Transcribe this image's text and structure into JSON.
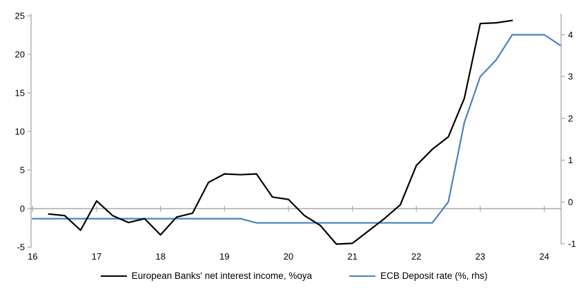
{
  "chart_data": {
    "type": "line",
    "title": "",
    "xlabel": "",
    "ylabel_left": "",
    "ylabel_right": "",
    "grid": false,
    "legend_position": "bottom",
    "x_axis": {
      "tick_labels": [
        "16",
        "17",
        "18",
        "19",
        "20",
        "21",
        "22",
        "23",
        "24"
      ],
      "tick_values": [
        16,
        17,
        18,
        19,
        20,
        21,
        22,
        23,
        24
      ],
      "range": [
        16,
        24.28
      ]
    },
    "left_axis": {
      "ticks": [
        -5,
        0,
        5,
        10,
        15,
        20,
        25
      ],
      "range": [
        -5,
        25
      ]
    },
    "right_axis": {
      "ticks": [
        -1,
        0,
        1,
        2,
        3,
        4
      ],
      "range": [
        -1,
        4.5
      ]
    },
    "series": [
      {
        "name": "European Banks' net interest income, %oya",
        "axis": "left",
        "color": "#000000",
        "x": [
          16.25,
          16.5,
          16.75,
          17.0,
          17.25,
          17.5,
          17.75,
          18.0,
          18.25,
          18.5,
          18.75,
          19.0,
          19.25,
          19.5,
          19.75,
          20.0,
          20.25,
          20.5,
          20.75,
          21.0,
          21.25,
          21.5,
          21.75,
          22.0,
          22.25,
          22.5,
          22.75,
          23.0,
          23.25,
          23.5
        ],
        "values": [
          -0.7,
          -0.9,
          -2.8,
          1.0,
          -0.9,
          -1.8,
          -1.3,
          -3.4,
          -1.1,
          -0.6,
          3.4,
          4.5,
          4.4,
          4.5,
          1.5,
          1.2,
          -0.9,
          -2.2,
          -4.6,
          -4.5,
          -2.9,
          -1.3,
          0.5,
          5.6,
          7.7,
          9.3,
          14.3,
          24.0,
          24.1,
          24.4
        ]
      },
      {
        "name": "ECB Deposit rate (%, rhs)",
        "axis": "right",
        "color": "#4a80c0",
        "x": [
          16.0,
          16.25,
          16.5,
          16.75,
          17.0,
          17.25,
          17.5,
          17.75,
          18.0,
          18.25,
          18.5,
          18.75,
          19.0,
          19.25,
          19.5,
          19.75,
          20.0,
          20.25,
          20.5,
          20.75,
          21.0,
          21.25,
          21.5,
          21.75,
          22.0,
          22.25,
          22.5,
          22.75,
          23.0,
          23.25,
          23.5,
          23.75,
          24.0,
          24.25
        ],
        "values": [
          -0.4,
          -0.4,
          -0.4,
          -0.4,
          -0.4,
          -0.4,
          -0.4,
          -0.4,
          -0.4,
          -0.4,
          -0.4,
          -0.4,
          -0.4,
          -0.4,
          -0.5,
          -0.5,
          -0.5,
          -0.5,
          -0.5,
          -0.5,
          -0.5,
          -0.5,
          -0.5,
          -0.5,
          -0.5,
          -0.5,
          0.0,
          1.9,
          3.0,
          3.4,
          4.0,
          4.0,
          4.0,
          3.75
        ]
      }
    ]
  },
  "colors": {
    "axis_line": "#a6a6a6",
    "zero_line": "#a8a8a8",
    "tick_text": "#000000",
    "background": "#ffffff"
  }
}
